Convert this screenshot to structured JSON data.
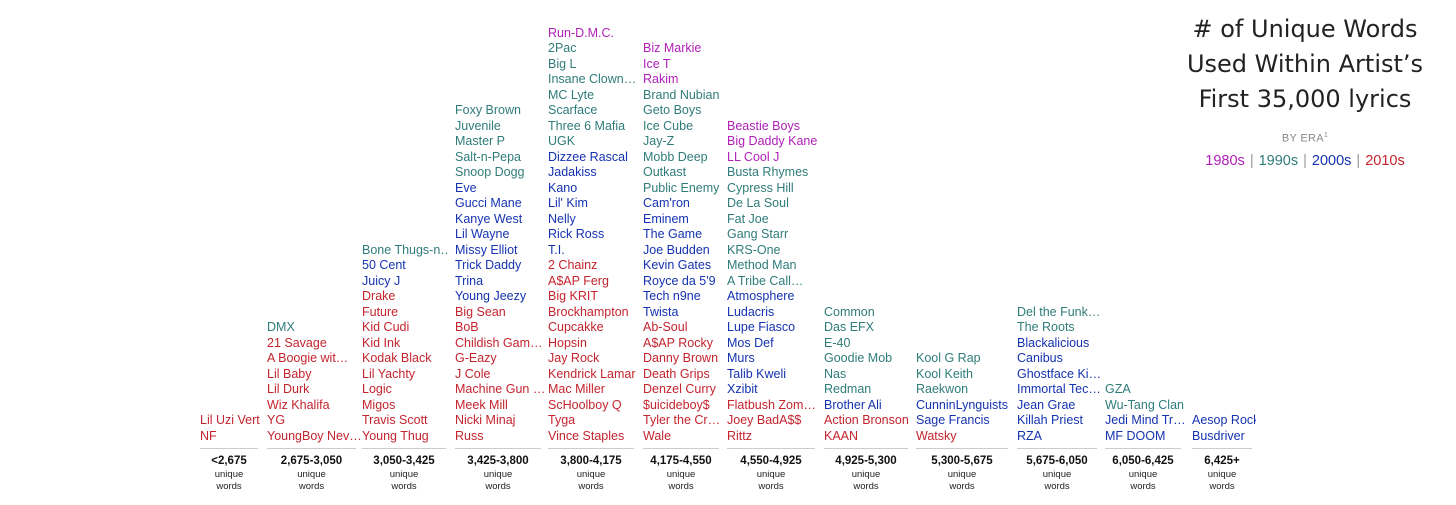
{
  "title_lines": [
    "# of Unique Words",
    "Used Within Artist’s",
    "First 35,000 lyrics"
  ],
  "subtitle": "BY ERA",
  "subtitle_sup": "1",
  "unit_lines": [
    "unique",
    "words"
  ],
  "colors": {
    "1980s": "#b01fb8",
    "1990s": "#2f7c7a",
    "2000s": "#1533b0",
    "2010s": "#c4242e"
  },
  "legend": [
    {
      "label": "1980s",
      "era": "1980s"
    },
    {
      "label": "1990s",
      "era": "1990s"
    },
    {
      "label": "2000s",
      "era": "2000s"
    },
    {
      "label": "2010s",
      "era": "2010s"
    }
  ],
  "chart_data": {
    "type": "table",
    "title": "# of Unique Words Used Within Artist’s First 35,000 lyrics",
    "subtitle": "BY ERA",
    "categories": [
      "<2,675",
      "2,675-3,050",
      "3,050-3,425",
      "3,425-3,800",
      "3,800-4,175",
      "4,175-4,550",
      "4,550-4,925",
      "4,925-5,300",
      "5,300-5,675",
      "5,675-6,050",
      "6,050-6,425",
      "6,425+"
    ],
    "bins": [
      {
        "range": "<2,675",
        "artists": [
          [
            "Lil Uzi Vert",
            "2010s"
          ],
          [
            "NF",
            "2010s"
          ]
        ]
      },
      {
        "range": "2,675-3,050",
        "artists": [
          [
            "DMX",
            "1990s"
          ],
          [
            "21 Savage",
            "2010s"
          ],
          [
            "A Boogie wit…",
            "2010s"
          ],
          [
            "Lil Baby",
            "2010s"
          ],
          [
            "Lil Durk",
            "2010s"
          ],
          [
            "Wiz Khalifa",
            "2010s"
          ],
          [
            "YG",
            "2010s"
          ],
          [
            "YoungBoy Nev…",
            "2010s"
          ]
        ]
      },
      {
        "range": "3,050-3,425",
        "artists": [
          [
            "Bone Thugs-n…",
            "1990s"
          ],
          [
            "50 Cent",
            "2000s"
          ],
          [
            "Juicy J",
            "2000s"
          ],
          [
            "Drake",
            "2010s"
          ],
          [
            "Future",
            "2010s"
          ],
          [
            "Kid Cudi",
            "2010s"
          ],
          [
            "Kid Ink",
            "2010s"
          ],
          [
            "Kodak Black",
            "2010s"
          ],
          [
            "Lil Yachty",
            "2010s"
          ],
          [
            "Logic",
            "2010s"
          ],
          [
            "Migos",
            "2010s"
          ],
          [
            "Travis Scott",
            "2010s"
          ],
          [
            "Young Thug",
            "2010s"
          ]
        ]
      },
      {
        "range": "3,425-3,800",
        "artists": [
          [
            "Foxy Brown",
            "1990s"
          ],
          [
            "Juvenile",
            "1990s"
          ],
          [
            "Master P",
            "1990s"
          ],
          [
            "Salt-n-Pepa",
            "1990s"
          ],
          [
            "Snoop Dogg",
            "1990s"
          ],
          [
            "Eve",
            "2000s"
          ],
          [
            "Gucci Mane",
            "2000s"
          ],
          [
            "Kanye West",
            "2000s"
          ],
          [
            "Lil Wayne",
            "2000s"
          ],
          [
            "Missy Elliot",
            "2000s"
          ],
          [
            "Trick Daddy",
            "2000s"
          ],
          [
            "Trina",
            "2000s"
          ],
          [
            "Young Jeezy",
            "2000s"
          ],
          [
            "Big Sean",
            "2010s"
          ],
          [
            "BoB",
            "2010s"
          ],
          [
            "Childish Gam…",
            "2010s"
          ],
          [
            "G-Eazy",
            "2010s"
          ],
          [
            "J Cole",
            "2010s"
          ],
          [
            "Machine Gun …",
            "2010s"
          ],
          [
            "Meek Mill",
            "2010s"
          ],
          [
            "Nicki Minaj",
            "2010s"
          ],
          [
            "Russ",
            "2010s"
          ]
        ]
      },
      {
        "range": "3,800-4,175",
        "artists": [
          [
            "Run-D.M.C.",
            "1980s"
          ],
          [
            "2Pac",
            "1990s"
          ],
          [
            "Big L",
            "1990s"
          ],
          [
            "Insane Clown…",
            "1990s"
          ],
          [
            "MC Lyte",
            "1990s"
          ],
          [
            "Scarface",
            "1990s"
          ],
          [
            "Three 6 Mafia",
            "1990s"
          ],
          [
            "UGK",
            "1990s"
          ],
          [
            "Dizzee Rascal",
            "2000s"
          ],
          [
            "Jadakiss",
            "2000s"
          ],
          [
            "Kano",
            "2000s"
          ],
          [
            "Lil' Kim",
            "2000s"
          ],
          [
            "Nelly",
            "2000s"
          ],
          [
            "Rick Ross",
            "2000s"
          ],
          [
            "T.I.",
            "2000s"
          ],
          [
            "2 Chainz",
            "2010s"
          ],
          [
            "A$AP Ferg",
            "2010s"
          ],
          [
            "Big KRIT",
            "2010s"
          ],
          [
            "Brockhampton",
            "2010s"
          ],
          [
            "Cupcakke",
            "2010s"
          ],
          [
            "Hopsin",
            "2010s"
          ],
          [
            "Jay Rock",
            "2010s"
          ],
          [
            "Kendrick Lamar",
            "2010s"
          ],
          [
            "Mac Miller",
            "2010s"
          ],
          [
            "ScHoolboy Q",
            "2010s"
          ],
          [
            "Tyga",
            "2010s"
          ],
          [
            "Vince Staples",
            "2010s"
          ]
        ]
      },
      {
        "range": "4,175-4,550",
        "artists": [
          [
            "Biz Markie",
            "1980s"
          ],
          [
            "Ice T",
            "1980s"
          ],
          [
            "Rakim",
            "1980s"
          ],
          [
            "Brand Nubian",
            "1990s"
          ],
          [
            "Geto Boys",
            "1990s"
          ],
          [
            "Ice Cube",
            "1990s"
          ],
          [
            "Jay-Z",
            "1990s"
          ],
          [
            "Mobb Deep",
            "1990s"
          ],
          [
            "Outkast",
            "1990s"
          ],
          [
            "Public Enemy",
            "1990s"
          ],
          [
            "Cam'ron",
            "2000s"
          ],
          [
            "Eminem",
            "2000s"
          ],
          [
            "The Game",
            "2000s"
          ],
          [
            "Joe Budden",
            "2000s"
          ],
          [
            "Kevin Gates",
            "2000s"
          ],
          [
            "Royce da 5'9",
            "2000s"
          ],
          [
            "Tech n9ne",
            "2000s"
          ],
          [
            "Twista",
            "2000s"
          ],
          [
            "Ab-Soul",
            "2010s"
          ],
          [
            "A$AP Rocky",
            "2010s"
          ],
          [
            "Danny Brown",
            "2010s"
          ],
          [
            "Death Grips",
            "2010s"
          ],
          [
            "Denzel Curry",
            "2010s"
          ],
          [
            "$uicideboy$",
            "2010s"
          ],
          [
            "Tyler the Cr…",
            "2010s"
          ],
          [
            "Wale",
            "2010s"
          ]
        ]
      },
      {
        "range": "4,550-4,925",
        "artists": [
          [
            "Beastie Boys",
            "1980s"
          ],
          [
            "Big Daddy Kane",
            "1980s"
          ],
          [
            "LL Cool J",
            "1980s"
          ],
          [
            "Busta Rhymes",
            "1990s"
          ],
          [
            "Cypress Hill",
            "1990s"
          ],
          [
            "De La Soul",
            "1990s"
          ],
          [
            "Fat Joe",
            "1990s"
          ],
          [
            "Gang Starr",
            "1990s"
          ],
          [
            "KRS-One",
            "1990s"
          ],
          [
            "Method Man",
            "1990s"
          ],
          [
            "A Tribe Call…",
            "1990s"
          ],
          [
            "Atmosphere",
            "2000s"
          ],
          [
            "Ludacris",
            "2000s"
          ],
          [
            "Lupe Fiasco",
            "2000s"
          ],
          [
            "Mos Def",
            "2000s"
          ],
          [
            "Murs",
            "2000s"
          ],
          [
            "Talib Kweli",
            "2000s"
          ],
          [
            "Xzibit",
            "2000s"
          ],
          [
            "Flatbush Zom…",
            "2010s"
          ],
          [
            "Joey BadA$$",
            "2010s"
          ],
          [
            "Rittz",
            "2010s"
          ]
        ]
      },
      {
        "range": "4,925-5,300",
        "artists": [
          [
            "Common",
            "1990s"
          ],
          [
            "Das EFX",
            "1990s"
          ],
          [
            "E-40",
            "1990s"
          ],
          [
            "Goodie Mob",
            "1990s"
          ],
          [
            "Nas",
            "1990s"
          ],
          [
            "Redman",
            "1990s"
          ],
          [
            "Brother Ali",
            "2000s"
          ],
          [
            "Action Bronson",
            "2010s"
          ],
          [
            "KAAN",
            "2010s"
          ]
        ]
      },
      {
        "range": "5,300-5,675",
        "artists": [
          [
            "Kool G Rap",
            "1990s"
          ],
          [
            "Kool Keith",
            "1990s"
          ],
          [
            "Raekwon",
            "1990s"
          ],
          [
            "CunninLynguists",
            "2000s"
          ],
          [
            "Sage Francis",
            "2000s"
          ],
          [
            "Watsky",
            "2010s"
          ]
        ]
      },
      {
        "range": "5,675-6,050",
        "artists": [
          [
            "Del the Funk…",
            "1990s"
          ],
          [
            "The Roots",
            "1990s"
          ],
          [
            "Blackalicious",
            "2000s"
          ],
          [
            "Canibus",
            "2000s"
          ],
          [
            "Ghostface Ki…",
            "2000s"
          ],
          [
            "Immortal Tec…",
            "2000s"
          ],
          [
            "Jean Grae",
            "2000s"
          ],
          [
            "Killah Priest",
            "2000s"
          ],
          [
            "RZA",
            "2000s"
          ]
        ]
      },
      {
        "range": "6,050-6,425",
        "artists": [
          [
            "GZA",
            "1990s"
          ],
          [
            "Wu-Tang Clan",
            "1990s"
          ],
          [
            "Jedi Mind Tr…",
            "2000s"
          ],
          [
            "MF DOOM",
            "2000s"
          ]
        ]
      },
      {
        "range": "6,425+",
        "artists": [
          [
            "Aesop Rock",
            "2000s"
          ],
          [
            "Busdriver",
            "2000s"
          ]
        ]
      }
    ]
  }
}
